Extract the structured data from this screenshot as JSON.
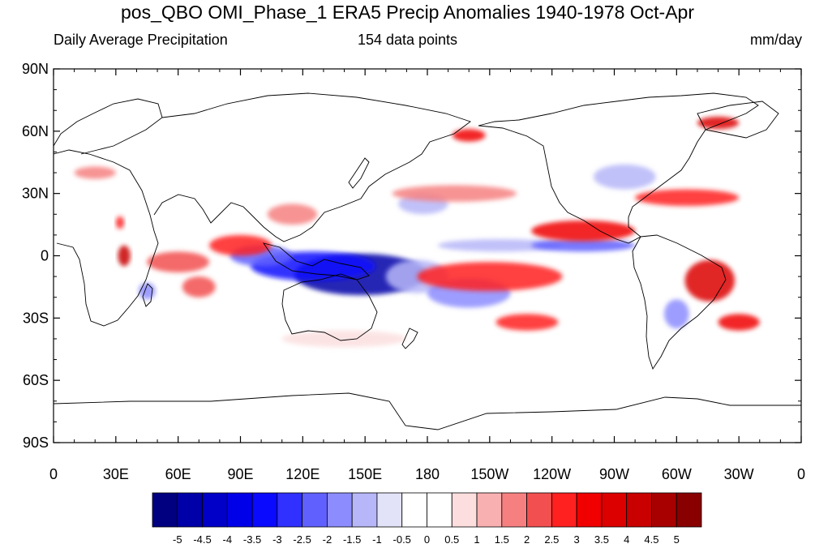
{
  "title": "pos_QBO OMI_Phase_1 ERA5 Precip Anomalies 1940-1978 Oct-Apr",
  "subtitle_left": "Daily Average Precipitation",
  "subtitle_center": "154 data points",
  "subtitle_right": "mm/day",
  "y_ticks": [
    {
      "lat": 90,
      "label": "90N"
    },
    {
      "lat": 60,
      "label": "60N"
    },
    {
      "lat": 30,
      "label": "30N"
    },
    {
      "lat": 0,
      "label": "0"
    },
    {
      "lat": -30,
      "label": "30S"
    },
    {
      "lat": -60,
      "label": "60S"
    },
    {
      "lat": -90,
      "label": "90S"
    }
  ],
  "x_ticks": [
    {
      "lon": 0,
      "label": "0"
    },
    {
      "lon": 30,
      "label": "30E"
    },
    {
      "lon": 60,
      "label": "60E"
    },
    {
      "lon": 90,
      "label": "90E"
    },
    {
      "lon": 120,
      "label": "120E"
    },
    {
      "lon": 150,
      "label": "150E"
    },
    {
      "lon": 180,
      "label": "180"
    },
    {
      "lon": 210,
      "label": "150W"
    },
    {
      "lon": 240,
      "label": "120W"
    },
    {
      "lon": 270,
      "label": "90W"
    },
    {
      "lon": 300,
      "label": "60W"
    },
    {
      "lon": 330,
      "label": "30W"
    },
    {
      "lon": 360,
      "label": "0"
    }
  ],
  "colorbar": {
    "colors": [
      "#000080",
      "#0000a8",
      "#0000c8",
      "#0000e8",
      "#0a0aff",
      "#3030ff",
      "#6060ff",
      "#8c8cff",
      "#b6b6f8",
      "#e2e2f8",
      "#ffffff",
      "#ffffff",
      "#fcdede",
      "#f9b0b0",
      "#f68080",
      "#f25050",
      "#ff2020",
      "#f00000",
      "#dc0000",
      "#c80000",
      "#a80000",
      "#880000"
    ],
    "labels": [
      "-5",
      "-4.5",
      "-4",
      "-3.5",
      "-3",
      "-2.5",
      "-2",
      "-1.5",
      "-1",
      "-0.5",
      "0",
      "0.5",
      "1",
      "1.5",
      "2",
      "2.5",
      "3",
      "3.5",
      "4",
      "4.5",
      "5"
    ]
  },
  "anomalies": [
    {
      "lon": 148,
      "lat": -9,
      "rx": 32,
      "ry": 10,
      "value": -5
    },
    {
      "lon": 125,
      "lat": -5,
      "rx": 30,
      "ry": 7,
      "value": -3.5
    },
    {
      "lon": 100,
      "lat": 0,
      "rx": 15,
      "ry": 5,
      "value": -2.5
    },
    {
      "lon": 175,
      "lat": -10,
      "rx": 15,
      "ry": 8,
      "value": -1.5
    },
    {
      "lon": 200,
      "lat": -18,
      "rx": 20,
      "ry": 7,
      "value": -2
    },
    {
      "lon": 215,
      "lat": 5,
      "rx": 30,
      "ry": 3,
      "value": -1.5
    },
    {
      "lon": 255,
      "lat": 5,
      "rx": 25,
      "ry": 3,
      "value": -2.5
    },
    {
      "lon": 178,
      "lat": 25,
      "rx": 12,
      "ry": 5,
      "value": -1.5
    },
    {
      "lon": 275,
      "lat": 38,
      "rx": 15,
      "ry": 6,
      "value": -1.5
    },
    {
      "lon": 300,
      "lat": -28,
      "rx": 6,
      "ry": 7,
      "value": -2
    },
    {
      "lon": 45,
      "lat": -17,
      "rx": 4,
      "ry": 4,
      "value": -2
    },
    {
      "lon": 30,
      "lat": 52,
      "rx": 25,
      "ry": 4,
      "value": -0.5
    },
    {
      "lon": 90,
      "lat": 5,
      "rx": 15,
      "ry": 5,
      "value": 2.5
    },
    {
      "lon": 60,
      "lat": -3,
      "rx": 15,
      "ry": 5,
      "value": 2
    },
    {
      "lon": 70,
      "lat": -15,
      "rx": 8,
      "ry": 5,
      "value": 2
    },
    {
      "lon": 34,
      "lat": 0,
      "rx": 3,
      "ry": 5,
      "value": 4
    },
    {
      "lon": 32,
      "lat": 16,
      "rx": 2,
      "ry": 3,
      "value": 2.5
    },
    {
      "lon": 210,
      "lat": -10,
      "rx": 35,
      "ry": 7,
      "value": 2.5
    },
    {
      "lon": 255,
      "lat": 12,
      "rx": 25,
      "ry": 5,
      "value": 3
    },
    {
      "lon": 316,
      "lat": -12,
      "rx": 12,
      "ry": 10,
      "value": 3.5
    },
    {
      "lon": 330,
      "lat": -32,
      "rx": 10,
      "ry": 4,
      "value": 3
    },
    {
      "lon": 228,
      "lat": -32,
      "rx": 15,
      "ry": 4,
      "value": 2.5
    },
    {
      "lon": 305,
      "lat": 28,
      "rx": 25,
      "ry": 4,
      "value": 2.5
    },
    {
      "lon": 320,
      "lat": 64,
      "rx": 10,
      "ry": 3,
      "value": 3.5
    },
    {
      "lon": 200,
      "lat": 58,
      "rx": 8,
      "ry": 3,
      "value": 3
    },
    {
      "lon": 193,
      "lat": 30,
      "rx": 30,
      "ry": 4,
      "value": 1.5
    },
    {
      "lon": 115,
      "lat": 20,
      "rx": 12,
      "ry": 5,
      "value": 1.5
    },
    {
      "lon": 20,
      "lat": 40,
      "rx": 10,
      "ry": 3,
      "value": 1.5
    },
    {
      "lon": 140,
      "lat": -40,
      "rx": 30,
      "ry": 4,
      "value": 0.5
    }
  ]
}
